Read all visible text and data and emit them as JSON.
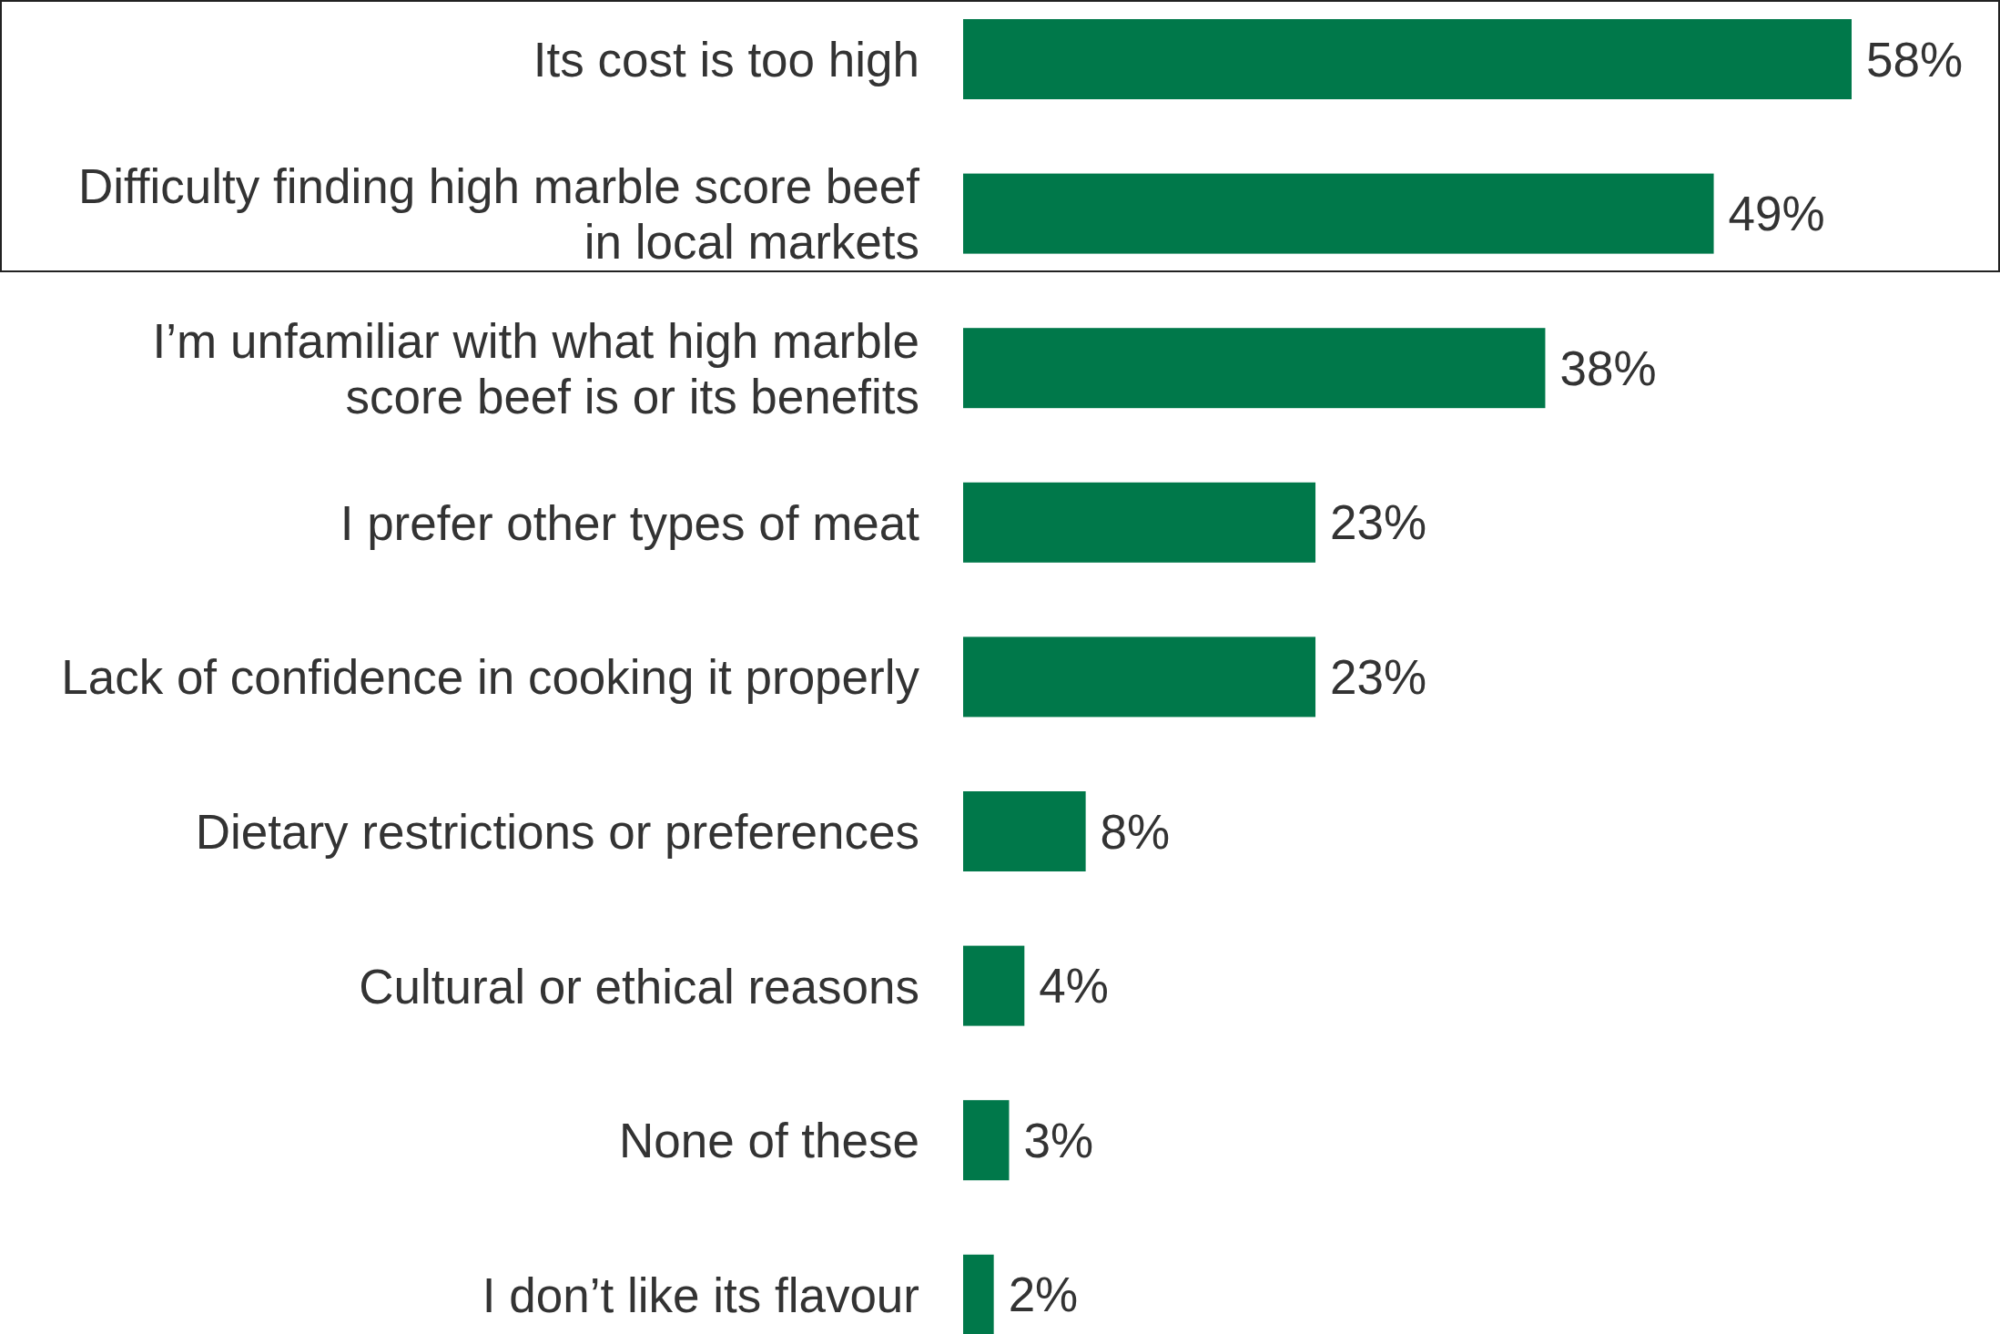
{
  "chart_data": {
    "type": "bar",
    "orientation": "horizontal",
    "categories": [
      "Its cost is too high",
      "Difficulty finding high marble score beef in local markets",
      "I’m unfamiliar with what high marble score beef is or its benefits",
      "I prefer other types of meat",
      "Lack of confidence in cooking it properly",
      "Dietary restrictions or preferences",
      "Cultural or ethical reasons",
      "None of these",
      "I don’t like its flavour"
    ],
    "values": [
      58,
      49,
      38,
      23,
      23,
      8,
      4,
      3,
      2
    ],
    "value_labels": [
      "58%",
      "49%",
      "38%",
      "23%",
      "23%",
      "8%",
      "4%",
      "3%",
      "2%"
    ],
    "color": "#00784a",
    "xlim": [
      0,
      58
    ],
    "tick_labels": "y"
  }
}
